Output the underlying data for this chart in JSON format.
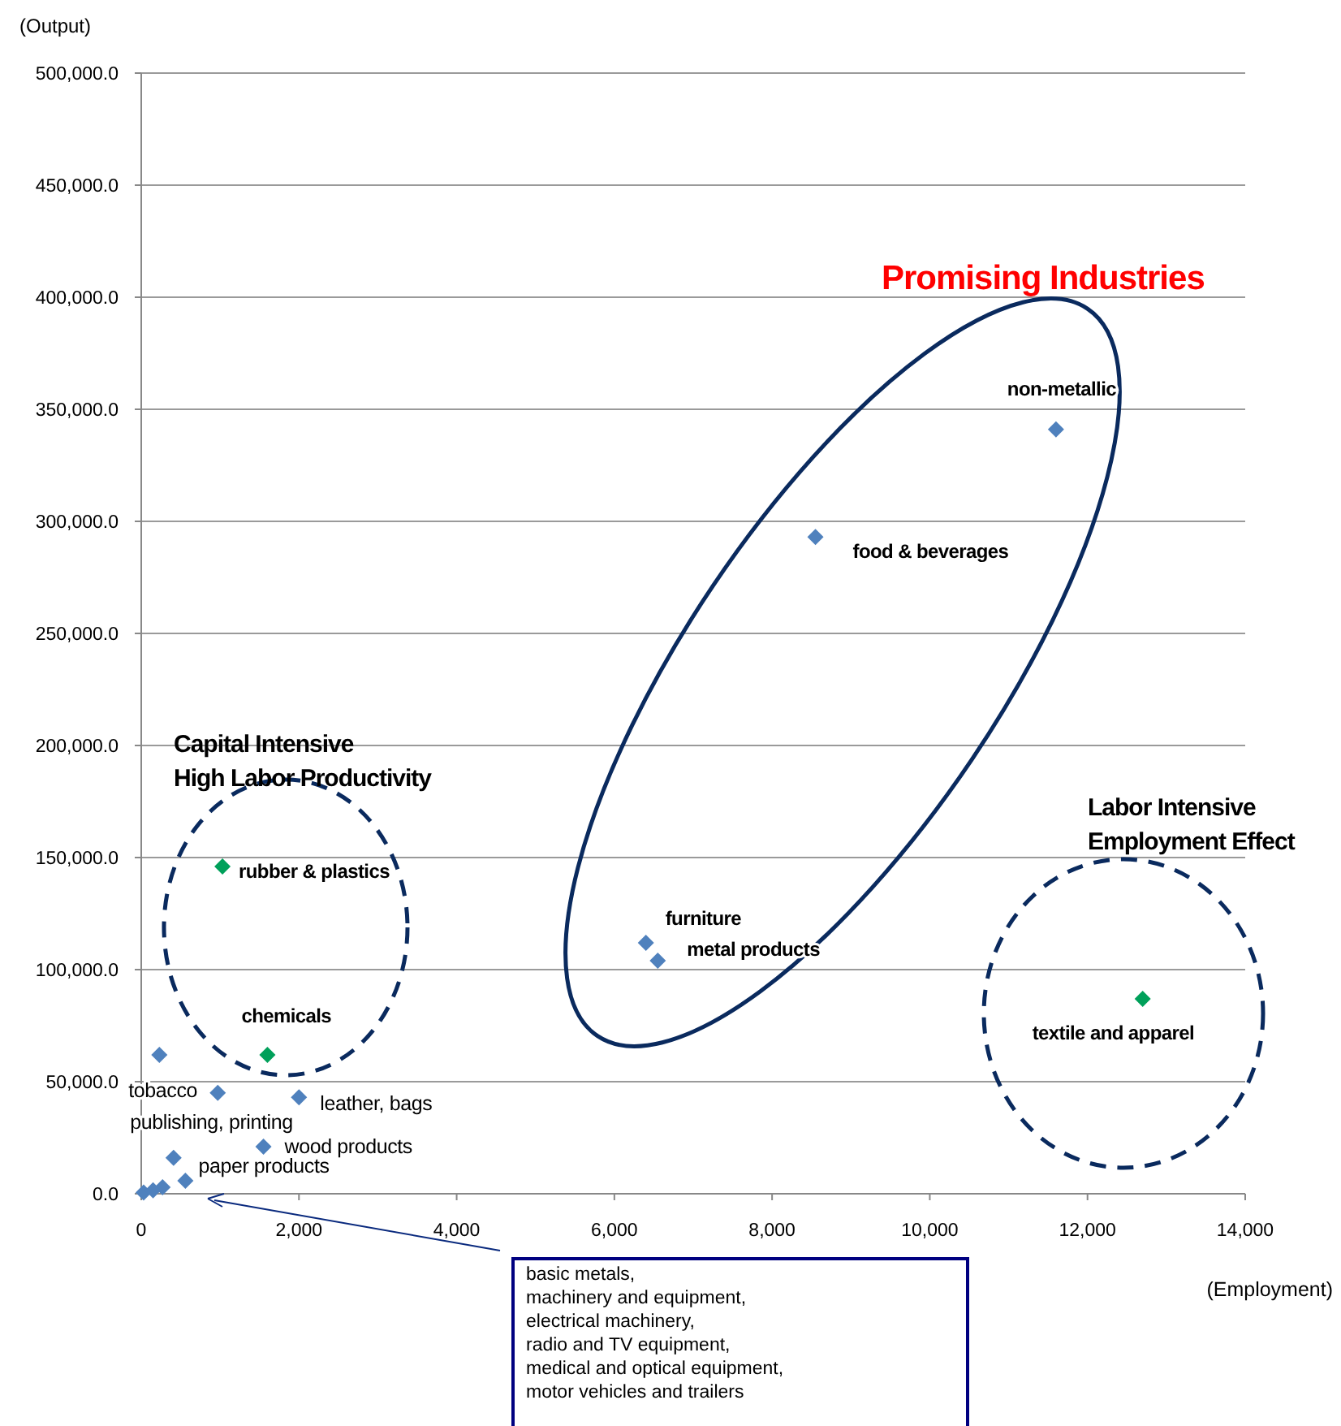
{
  "chart_data": {
    "type": "scatter",
    "xlabel": "(Employment)",
    "ylabel": "(Output)",
    "xlim": [
      0,
      14000
    ],
    "xticks": [
      0,
      {
        "value": 2000,
        "label": "2,000"
      },
      {
        "value": 4000,
        "label": "4,000"
      },
      {
        "value": 6000,
        "label": "6,000"
      },
      {
        "value": 8000,
        "label": "8,000"
      },
      {
        "value": 10000,
        "label": "10,000"
      },
      {
        "value": 12000,
        "label": "12,000"
      },
      {
        "value": 14000,
        "label": "14,000"
      }
    ],
    "ylim": [
      0,
      500000
    ],
    "yticks": [
      {
        "value": 0,
        "label": "0.0"
      },
      {
        "value": 50000,
        "label": "50,000.0"
      },
      {
        "value": 100000,
        "label": "100,000.0"
      },
      {
        "value": 150000,
        "label": "150,000.0"
      },
      {
        "value": 200000,
        "label": "200,000.0"
      },
      {
        "value": 250000,
        "label": "250,000.0"
      },
      {
        "value": 300000,
        "label": "300,000.0"
      },
      {
        "value": 350000,
        "label": "350,000.0"
      },
      {
        "value": 400000,
        "label": "400,000.0"
      },
      {
        "value": 450000,
        "label": "450,000.0"
      },
      {
        "value": 500000,
        "label": "500,000.0"
      }
    ],
    "grid": "y",
    "marker": "diamond",
    "series": [
      {
        "color": "#4f81bd",
        "x": [
          11600,
          8550,
          6400,
          6550,
          230,
          970,
          2000,
          1550,
          410,
          560,
          270,
          30,
          150
        ],
        "values": [
          341000,
          293000,
          112000,
          104000,
          62000,
          45000,
          43000,
          21000,
          16000,
          5800,
          2900,
          500,
          1500
        ]
      },
      {
        "color": "#00a05a",
        "x": [
          12700,
          1030,
          1600
        ],
        "values": [
          87000,
          146000,
          62000
        ]
      }
    ],
    "annotations": [
      {
        "text": "non-metallic",
        "x": 11600,
        "y": 341000
      },
      {
        "text": "food & beverages",
        "x": 8550,
        "y": 293000
      },
      {
        "text": "furniture",
        "x": 6400,
        "y": 112000
      },
      {
        "text": "metal products",
        "x": 6550,
        "y": 104000
      },
      {
        "text": "textile and apparel",
        "x": 12700,
        "y": 87000
      },
      {
        "text": "rubber & plastics",
        "x": 1030,
        "y": 146000
      },
      {
        "text": "chemicals",
        "x": 1600,
        "y": 62000
      },
      {
        "text": "tobacco",
        "x": 230,
        "y": 62000
      },
      {
        "text": "publishing, printing",
        "x": 970,
        "y": 45000
      },
      {
        "text": "leather, bags",
        "x": 2000,
        "y": 43000
      },
      {
        "text": "wood products",
        "x": 1550,
        "y": 21000
      },
      {
        "text": "paper products",
        "x": 560,
        "y": 5800
      },
      "Promising Industries",
      "Capital Intensive\nHigh Labor Productivity",
      "Labor Intensive\nEmployment Effect",
      "basic metals,\nmachinery and equipment,\nelectrical machinery,\nradio and TV equipment,\nmedical and optical equipment,\nmotor vehicles and trailers"
    ]
  }
}
